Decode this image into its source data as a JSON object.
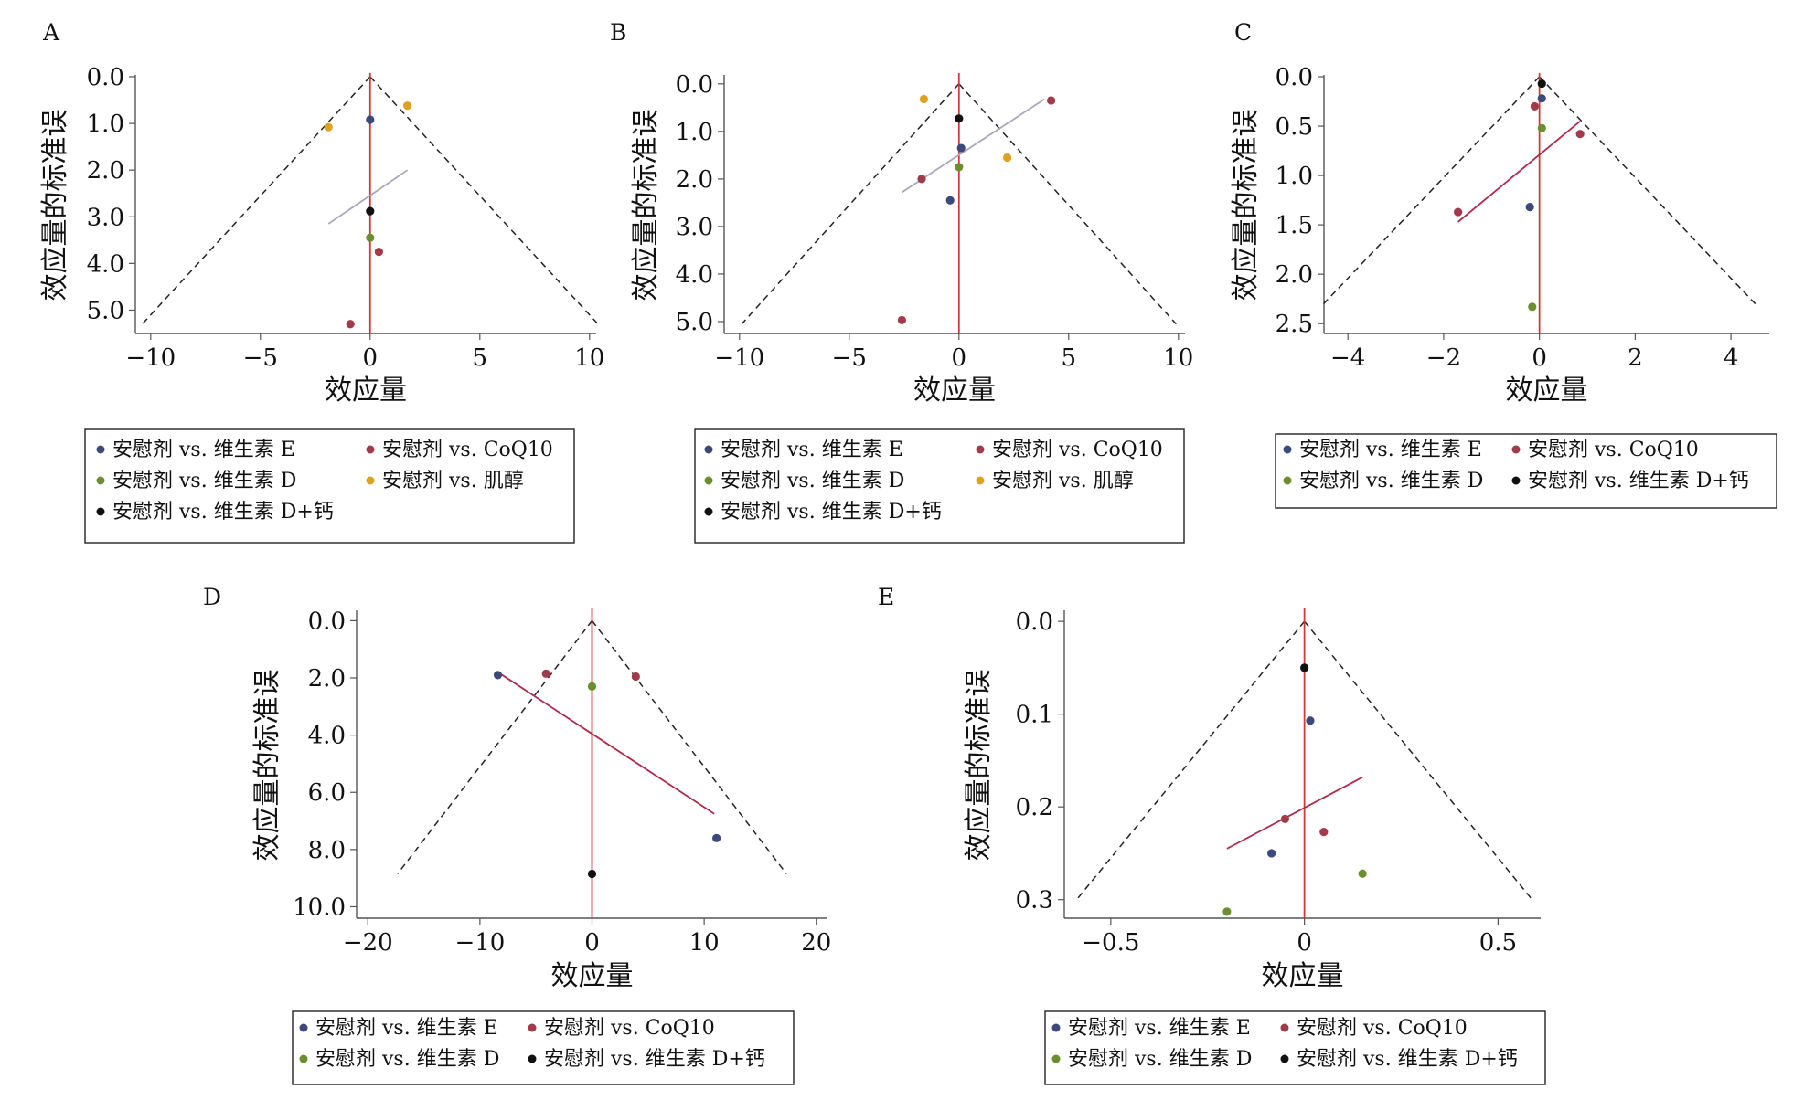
{
  "colors": {
    "vitamin_e": "#3b4a7a",
    "coq10": "#a33a4a",
    "vitamin_d": "#6b8f2e",
    "inositol": "#e0a020",
    "vitamin_d_calcium": "#111111",
    "null_line": "#d23a3a",
    "funnel": "#222222",
    "regression_gray": "#a8a8b8",
    "regression_red": "#b02a4a"
  },
  "chart_data": [
    {
      "panel": "A",
      "type": "scatter",
      "subtype": "funnel",
      "xlabel": "效应量",
      "ylabel": "效应量的标准误",
      "xlim": [
        -10.7,
        10.3
      ],
      "ylim": [
        0,
        5.5
      ],
      "y_reversed": true,
      "x_ticks": [
        -10,
        -5,
        0,
        5,
        10
      ],
      "x_tick_labels": [
        "−10",
        "−5",
        "0",
        "5",
        "10"
      ],
      "y_ticks": [
        0,
        1,
        2,
        3,
        4,
        5
      ],
      "y_tick_labels": [
        "0.0",
        "1.0",
        "2.0",
        "3.0",
        "4.0",
        "5.0"
      ],
      "funnel": {
        "apex": [
          0,
          0
        ],
        "se_max": 5.3,
        "slope": 1.96
      },
      "regression": {
        "color": "gray",
        "points": [
          [
            -1.9,
            3.15
          ],
          [
            1.7,
            2.0
          ]
        ]
      },
      "series": [
        {
          "name": "安慰剂 vs. 维生素 E",
          "color": "vitamin_e",
          "points": [
            [
              0,
              0.92
            ]
          ]
        },
        {
          "name": "安慰剂 vs. CoQ10",
          "color": "coq10",
          "points": [
            [
              0.4,
              3.75
            ],
            [
              -0.9,
              5.3
            ]
          ]
        },
        {
          "name": "安慰剂 vs. 维生素 D",
          "color": "vitamin_d",
          "points": [
            [
              0,
              3.45
            ]
          ]
        },
        {
          "name": "安慰剂 vs. 肌醇",
          "color": "inositol",
          "points": [
            [
              1.7,
              0.62
            ],
            [
              -1.9,
              1.08
            ]
          ]
        },
        {
          "name": "安慰剂 vs. 维生素 D+钙",
          "color": "vitamin_d_calcium",
          "points": [
            [
              0,
              2.88
            ]
          ]
        }
      ]
    },
    {
      "panel": "B",
      "type": "scatter",
      "subtype": "funnel",
      "xlabel": "效应量",
      "ylabel": "效应量的标准误",
      "xlim": [
        -10.7,
        10.3
      ],
      "ylim": [
        -0.15,
        5.25
      ],
      "y_reversed": true,
      "x_ticks": [
        -10,
        -5,
        0,
        5,
        10
      ],
      "x_tick_labels": [
        "−10",
        "−5",
        "0",
        "5",
        "10"
      ],
      "y_ticks": [
        0,
        1,
        2,
        3,
        4,
        5
      ],
      "y_tick_labels": [
        "0.0",
        "1.0",
        "2.0",
        "3.0",
        "4.0",
        "5.0"
      ],
      "funnel": {
        "apex": [
          0,
          0
        ],
        "se_max": 5.05,
        "slope": 1.96
      },
      "regression": {
        "color": "gray",
        "points": [
          [
            -2.6,
            2.28
          ],
          [
            3.9,
            0.32
          ]
        ]
      },
      "series": [
        {
          "name": "安慰剂 vs. 维生素 E",
          "color": "vitamin_e",
          "points": [
            [
              0.1,
              1.35
            ],
            [
              -0.4,
              2.45
            ]
          ]
        },
        {
          "name": "安慰剂 vs. CoQ10",
          "color": "coq10",
          "points": [
            [
              4.2,
              0.35
            ],
            [
              -1.7,
              2.0
            ],
            [
              -2.6,
              4.97
            ]
          ]
        },
        {
          "name": "安慰剂 vs. 维生素 D",
          "color": "vitamin_d",
          "points": [
            [
              0,
              1.75
            ]
          ]
        },
        {
          "name": "安慰剂 vs. 肌醇",
          "color": "inositol",
          "points": [
            [
              -1.6,
              0.32
            ],
            [
              2.2,
              1.55
            ]
          ]
        },
        {
          "name": "安慰剂 vs. 维生素 D+钙",
          "color": "vitamin_d_calcium",
          "points": [
            [
              0,
              0.73
            ]
          ]
        }
      ]
    },
    {
      "panel": "C",
      "type": "scatter",
      "subtype": "funnel",
      "xlabel": "效应量",
      "ylabel": "效应量的标准误",
      "xlim": [
        -4.5,
        4.8
      ],
      "ylim": [
        0,
        2.6
      ],
      "y_reversed": true,
      "x_ticks": [
        -4,
        -2,
        0,
        2,
        4
      ],
      "x_tick_labels": [
        "−4",
        "−2",
        "0",
        "2",
        "4"
      ],
      "y_ticks": [
        0,
        0.5,
        1.0,
        1.5,
        2.0,
        2.5
      ],
      "y_tick_labels": [
        "0.0",
        "0.5",
        "1.0",
        "1.5",
        "2.0",
        "2.5"
      ],
      "funnel": {
        "apex": [
          0,
          0
        ],
        "se_max": 2.3,
        "slope": 1.96
      },
      "regression": {
        "color": "red",
        "points": [
          [
            -1.7,
            1.47
          ],
          [
            0.85,
            0.45
          ]
        ]
      },
      "series": [
        {
          "name": "安慰剂 vs. 维生素 E",
          "color": "vitamin_e",
          "points": [
            [
              0.05,
              0.22
            ],
            [
              -0.2,
              1.32
            ]
          ]
        },
        {
          "name": "安慰剂 vs. CoQ10",
          "color": "coq10",
          "points": [
            [
              -0.1,
              0.3
            ],
            [
              0.85,
              0.58
            ],
            [
              -1.7,
              1.37
            ]
          ]
        },
        {
          "name": "安慰剂 vs. 维生素 D",
          "color": "vitamin_d",
          "points": [
            [
              0.05,
              0.52
            ],
            [
              -0.15,
              2.33
            ]
          ]
        },
        {
          "name": "安慰剂 vs. 维生素 D+钙",
          "color": "vitamin_d_calcium",
          "points": [
            [
              0.05,
              0.07
            ]
          ]
        }
      ]
    },
    {
      "panel": "D",
      "type": "scatter",
      "subtype": "funnel",
      "xlabel": "效应量",
      "ylabel": "效应量的标准误",
      "xlim": [
        -21,
        21
      ],
      "ylim": [
        -0.3,
        10.4
      ],
      "y_reversed": true,
      "x_ticks": [
        -20,
        -10,
        0,
        10,
        20
      ],
      "x_tick_labels": [
        "−20",
        "−10",
        "0",
        "10",
        "20"
      ],
      "y_ticks": [
        0,
        2,
        4,
        6,
        8,
        10
      ],
      "y_tick_labels": [
        "0.0",
        "2.0",
        "4.0",
        "6.0",
        "8.0",
        "10.0"
      ],
      "funnel": {
        "apex": [
          0,
          0
        ],
        "se_max": 8.85,
        "slope": 1.96
      },
      "regression": {
        "color": "red",
        "points": [
          [
            -8.2,
            1.85
          ],
          [
            10.9,
            6.75
          ]
        ]
      },
      "series": [
        {
          "name": "安慰剂 vs. 维生素 E",
          "color": "vitamin_e",
          "points": [
            [
              -8.4,
              1.9
            ],
            [
              11.1,
              7.6
            ]
          ]
        },
        {
          "name": "安慰剂 vs. CoQ10",
          "color": "coq10",
          "points": [
            [
              -4.1,
              1.85
            ],
            [
              3.9,
              1.95
            ]
          ]
        },
        {
          "name": "安慰剂 vs. 维生素 D",
          "color": "vitamin_d",
          "points": [
            [
              0,
              2.3
            ]
          ]
        },
        {
          "name": "安慰剂 vs. 维生素 D+钙",
          "color": "vitamin_d_calcium",
          "points": [
            [
              0,
              8.85
            ]
          ]
        }
      ]
    },
    {
      "panel": "E",
      "type": "scatter",
      "subtype": "funnel",
      "xlabel": "效应量",
      "ylabel": "效应量的标准误",
      "xlim": [
        -0.62,
        0.61
      ],
      "ylim": [
        -0.01,
        0.32
      ],
      "y_reversed": true,
      "x_ticks": [
        -0.5,
        0,
        0.5
      ],
      "x_tick_labels": [
        "−0.5",
        "0",
        "0.5"
      ],
      "y_ticks": [
        0,
        0.1,
        0.2,
        0.3
      ],
      "y_tick_labels": [
        "0.0",
        "0.1",
        "0.2",
        "0.3"
      ],
      "funnel": {
        "apex": [
          0,
          0
        ],
        "se_max": 0.3,
        "slope": 1.96
      },
      "regression": {
        "color": "red",
        "points": [
          [
            -0.2,
            0.245
          ],
          [
            0.15,
            0.168
          ]
        ]
      },
      "series": [
        {
          "name": "安慰剂 vs. 维生素 E",
          "color": "vitamin_e",
          "points": [
            [
              0.015,
              0.107
            ],
            [
              -0.085,
              0.25
            ]
          ]
        },
        {
          "name": "安慰剂 vs. CoQ10",
          "color": "coq10",
          "points": [
            [
              -0.05,
              0.213
            ],
            [
              0.05,
              0.227
            ]
          ]
        },
        {
          "name": "安慰剂 vs. 维生素 D",
          "color": "vitamin_d",
          "points": [
            [
              0.15,
              0.272
            ],
            [
              -0.2,
              0.313
            ]
          ]
        },
        {
          "name": "安慰剂 vs. 维生素 D+钙",
          "color": "vitamin_d_calcium",
          "points": [
            [
              0,
              0.05
            ]
          ]
        }
      ]
    }
  ]
}
